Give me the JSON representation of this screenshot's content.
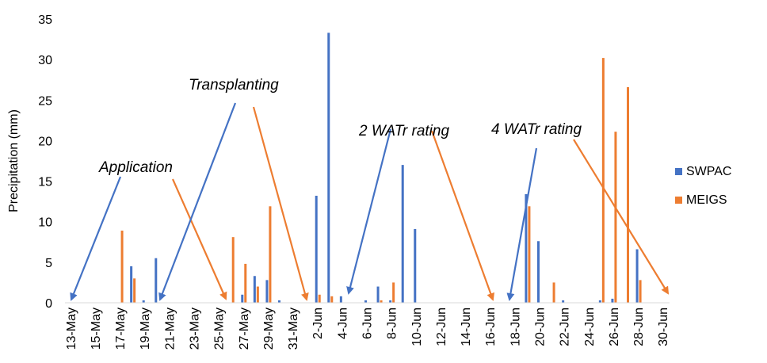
{
  "chart_data": {
    "type": "bar",
    "ylabel": "Precipitation (mm)",
    "ylim": [
      0,
      35
    ],
    "yticks": [
      0,
      5,
      10,
      15,
      20,
      25,
      30,
      35
    ],
    "xtick_labels": [
      "13-May",
      "15-May",
      "17-May",
      "19-May",
      "21-May",
      "23-May",
      "25-May",
      "27-May",
      "29-May",
      "31-May",
      "2-Jun",
      "4-Jun",
      "6-Jun",
      "8-Jun",
      "10-Jun",
      "12-Jun",
      "14-Jun",
      "16-Jun",
      "18-Jun",
      "20-Jun",
      "22-Jun",
      "24-Jun",
      "26-Jun",
      "28-Jun",
      "30-Jun"
    ],
    "categories": [
      "13-May",
      "14-May",
      "15-May",
      "16-May",
      "17-May",
      "18-May",
      "19-May",
      "20-May",
      "21-May",
      "22-May",
      "23-May",
      "24-May",
      "25-May",
      "26-May",
      "27-May",
      "28-May",
      "29-May",
      "30-May",
      "31-May",
      "1-Jun",
      "2-Jun",
      "3-Jun",
      "4-Jun",
      "5-Jun",
      "6-Jun",
      "7-Jun",
      "8-Jun",
      "9-Jun",
      "10-Jun",
      "11-Jun",
      "12-Jun",
      "13-Jun",
      "14-Jun",
      "15-Jun",
      "16-Jun",
      "17-Jun",
      "18-Jun",
      "19-Jun",
      "20-Jun",
      "21-Jun",
      "22-Jun",
      "23-Jun",
      "24-Jun",
      "25-Jun",
      "26-Jun",
      "27-Jun",
      "28-Jun",
      "29-Jun",
      "30-Jun"
    ],
    "series": [
      {
        "name": "SWPAC",
        "color": "#4472C4",
        "values": [
          0,
          0,
          0,
          0,
          0,
          4.5,
          0.3,
          5.5,
          0,
          0,
          0,
          0,
          0,
          0,
          1.0,
          3.3,
          2.8,
          0.3,
          0,
          0,
          13.2,
          33.3,
          0.8,
          0,
          0.3,
          2.0,
          0.3,
          17.0,
          9.1,
          0,
          0,
          0,
          0,
          0,
          0,
          0,
          0,
          13.4,
          7.6,
          0,
          0.3,
          0,
          0,
          0.3,
          0.5,
          0,
          6.6,
          0,
          0
        ]
      },
      {
        "name": "MEIGS",
        "color": "#ED7D31",
        "values": [
          0,
          0,
          0,
          0,
          8.9,
          3.0,
          0,
          0,
          0,
          0,
          0,
          0,
          0,
          8.1,
          4.8,
          2.0,
          11.9,
          0,
          0,
          0,
          1.0,
          0.8,
          0,
          0,
          0,
          0.3,
          2.5,
          0,
          0,
          0,
          0,
          0,
          0,
          0,
          0,
          0,
          0,
          11.9,
          0,
          2.5,
          0,
          0,
          0,
          30.2,
          21.1,
          26.6,
          2.8,
          0,
          0
        ]
      }
    ],
    "legend_position": "right",
    "grid": false,
    "annotations": [
      {
        "text": "Application",
        "color_blue": "#4472C4",
        "color_orange": "#ED7D31"
      },
      {
        "text": "Transplanting",
        "color_blue": "#4472C4",
        "color_orange": "#ED7D31"
      },
      {
        "text": "2 WATr rating",
        "color_blue": "#4472C4",
        "color_orange": "#ED7D31"
      },
      {
        "text": "4 WATr rating",
        "color_blue": "#4472C4",
        "color_orange": "#ED7D31"
      }
    ]
  }
}
